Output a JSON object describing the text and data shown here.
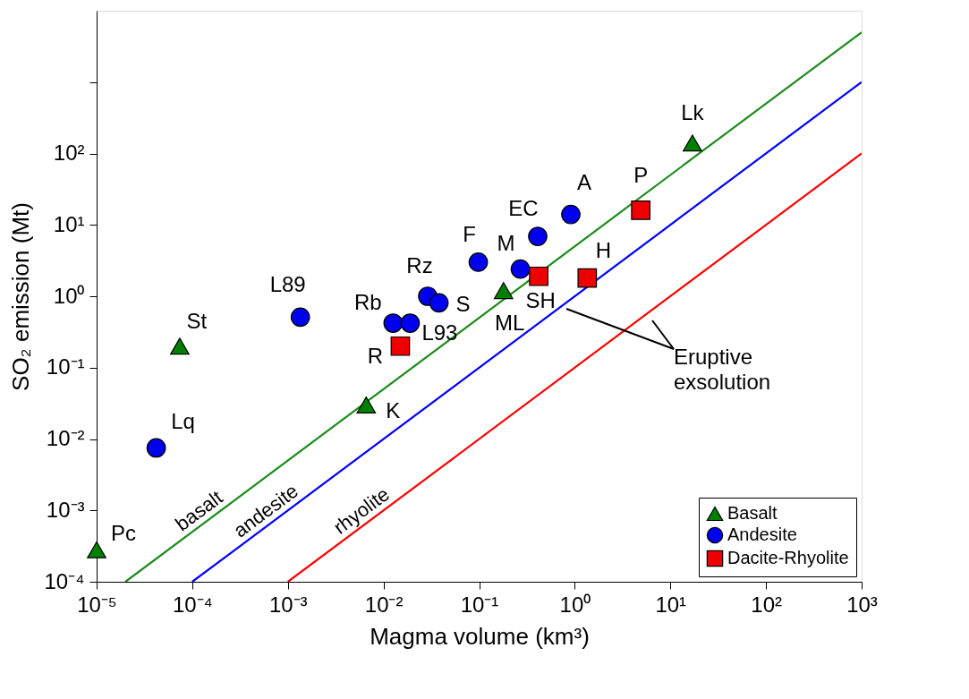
{
  "chart_data": {
    "type": "scatter",
    "xlabel": "Magma volume (km³)",
    "ylabel": "SO₂ emission (Mt)",
    "log": "xy",
    "grid": false,
    "legend": "bottom right",
    "xlim": [
      1e-05,
      1000
    ],
    "ylim": [
      0.0001,
      10000
    ],
    "xticks": [
      {
        "value": 1e-05,
        "label": "10⁻⁵"
      },
      {
        "value": 0.0001,
        "label": "10⁻⁴"
      },
      {
        "value": 0.001,
        "label": "10⁻³"
      },
      {
        "value": 0.01,
        "label": "10⁻²"
      },
      {
        "value": 0.1,
        "label": "10⁻¹"
      },
      {
        "value": 1,
        "label": "10⁰"
      },
      {
        "value": 10,
        "label": "10¹"
      },
      {
        "value": 100,
        "label": "10²"
      },
      {
        "value": 1000,
        "label": "10³"
      }
    ],
    "yticks": [
      {
        "value": 0.0001,
        "label": "10⁻⁴"
      },
      {
        "value": 0.001,
        "label": "10⁻³"
      },
      {
        "value": 0.01,
        "label": "10⁻²"
      },
      {
        "value": 0.1,
        "label": "10⁻¹"
      },
      {
        "value": 1,
        "label": "10⁰"
      },
      {
        "value": 10,
        "label": "10¹"
      },
      {
        "value": 100,
        "label": "10²"
      },
      {
        "value": 1000,
        "label": null
      }
    ],
    "series": [
      {
        "name": "basalt",
        "type": "line",
        "color": "#1a8c1a",
        "line_style": "solid",
        "x": [
          2e-05,
          1000
        ],
        "values": [
          0.0001,
          5000
        ]
      },
      {
        "name": "andesite",
        "type": "line",
        "color": "#0000ff",
        "line_style": "solid",
        "x": [
          0.0001,
          1000
        ],
        "values": [
          0.0001,
          1000
        ]
      },
      {
        "name": "rhyolite",
        "type": "line",
        "color": "#ff0000",
        "line_style": "solid",
        "x": [
          0.001,
          1000
        ],
        "values": [
          0.0001,
          100
        ]
      },
      {
        "name": "Basalt",
        "marker": "triangle",
        "color": "#008000",
        "x": [
          1e-05,
          7.4e-05,
          0.0066,
          0.18,
          17
        ],
        "values": [
          0.00028,
          0.2,
          0.03,
          1.2,
          140
        ]
      },
      {
        "name": "Andesite",
        "marker": "circle",
        "color": "#0000ee",
        "x": [
          4.2e-05,
          0.00135,
          0.0126,
          0.019,
          0.029,
          0.038,
          0.098,
          0.27,
          0.41,
          0.91
        ],
        "values": [
          0.0075,
          0.51,
          0.42,
          0.42,
          1.0,
          0.81,
          3.0,
          2.4,
          6.9,
          14
        ]
      },
      {
        "name": "Dacite-Rhyolite",
        "marker": "square",
        "color": "#ee0000",
        "x": [
          0.015,
          0.42,
          1.35,
          4.9
        ],
        "values": [
          0.2,
          1.9,
          1.8,
          16
        ]
      }
    ],
    "annotations": [
      {
        "text": "Pc",
        "x": 1e-05,
        "y": 0.00028
      },
      {
        "text": "St",
        "x": 7.4e-05,
        "y": 0.2
      },
      {
        "text": "K",
        "x": 0.0066,
        "y": 0.03
      },
      {
        "text": "ML",
        "x": 0.18,
        "y": 1.2
      },
      {
        "text": "Lk",
        "x": 17,
        "y": 140
      },
      {
        "text": "Lq",
        "x": 4.2e-05,
        "y": 0.0075
      },
      {
        "text": "L89",
        "x": 0.00135,
        "y": 0.51
      },
      {
        "text": "Rb",
        "x": 0.0126,
        "y": 0.42
      },
      {
        "text": "L93",
        "x": 0.019,
        "y": 0.42
      },
      {
        "text": "Rz",
        "x": 0.029,
        "y": 1.0
      },
      {
        "text": "S",
        "x": 0.038,
        "y": 0.81
      },
      {
        "text": "F",
        "x": 0.098,
        "y": 3.0
      },
      {
        "text": "M",
        "x": 0.27,
        "y": 2.4
      },
      {
        "text": "EC",
        "x": 0.41,
        "y": 6.9
      },
      {
        "text": "A",
        "x": 0.91,
        "y": 14
      },
      {
        "text": "R",
        "x": 0.015,
        "y": 0.2
      },
      {
        "text": "SH",
        "x": 0.42,
        "y": 1.9
      },
      {
        "text": "H",
        "x": 1.35,
        "y": 1.8
      },
      {
        "text": "P",
        "x": 4.9,
        "y": 16
      },
      "Eruptive exsolution"
    ]
  }
}
